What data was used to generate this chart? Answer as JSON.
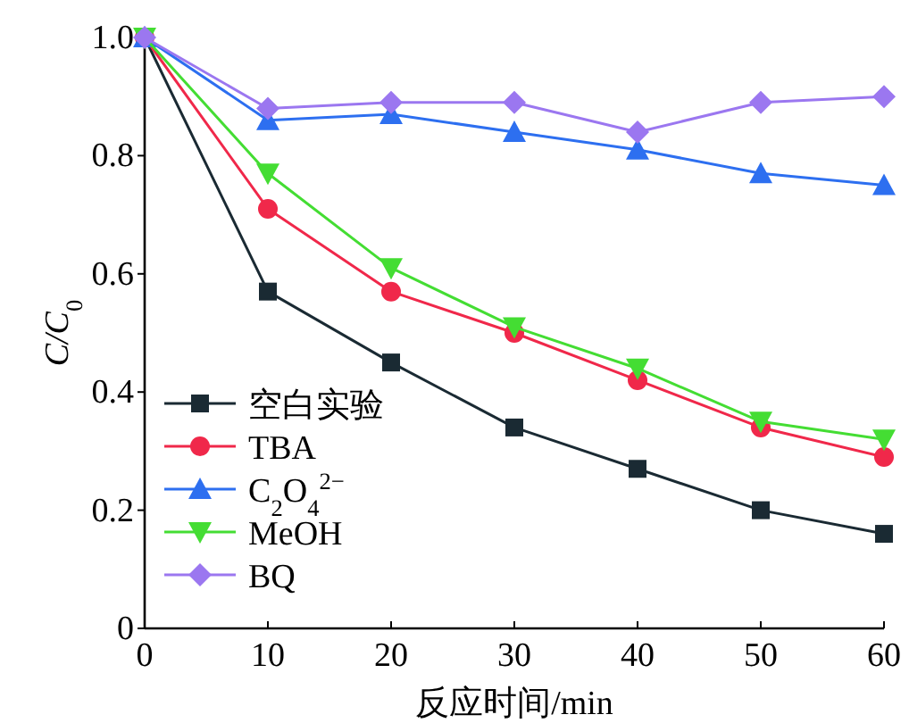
{
  "chart_data": {
    "type": "line",
    "xlabel": "反应时间/min",
    "ylabel": "C/C$_{0}$",
    "x": [
      0,
      10,
      20,
      30,
      40,
      50,
      60
    ],
    "xlim": [
      0,
      60
    ],
    "xticks": [
      0,
      10,
      20,
      30,
      40,
      50,
      60
    ],
    "ylim": [
      0,
      1.0
    ],
    "yticks": [
      0,
      0.2,
      0.4,
      0.6,
      0.8,
      {
        "value": 1.0,
        "label": "1.0"
      }
    ],
    "grid": false,
    "legend": "bottom left",
    "line_style": "solid",
    "series": [
      {
        "name": "空白实验",
        "color": "#1a2a33",
        "marker": "square",
        "values": [
          1.0,
          0.57,
          0.45,
          0.34,
          0.27,
          0.2,
          0.16
        ]
      },
      {
        "name": "TBA",
        "color": "#f0284a",
        "marker": "circle",
        "values": [
          1.0,
          0.71,
          0.57,
          0.5,
          0.42,
          0.34,
          0.29
        ]
      },
      {
        "name": "C$_{2}$O$_{4}$$^{2−}$",
        "color": "#2d6ff0",
        "marker": "triangle",
        "values": [
          1.0,
          0.86,
          0.87,
          0.84,
          0.81,
          0.77,
          0.75
        ]
      },
      {
        "name": "MeOH",
        "color": "#44dd33",
        "marker": "triangle-down",
        "values": [
          1.0,
          0.77,
          0.61,
          0.51,
          0.44,
          0.35,
          0.32
        ]
      },
      {
        "name": "BQ",
        "color": "#9b77f0",
        "marker": "diamond",
        "values": [
          1.0,
          0.88,
          0.89,
          0.89,
          0.84,
          0.89,
          0.9
        ]
      }
    ]
  }
}
